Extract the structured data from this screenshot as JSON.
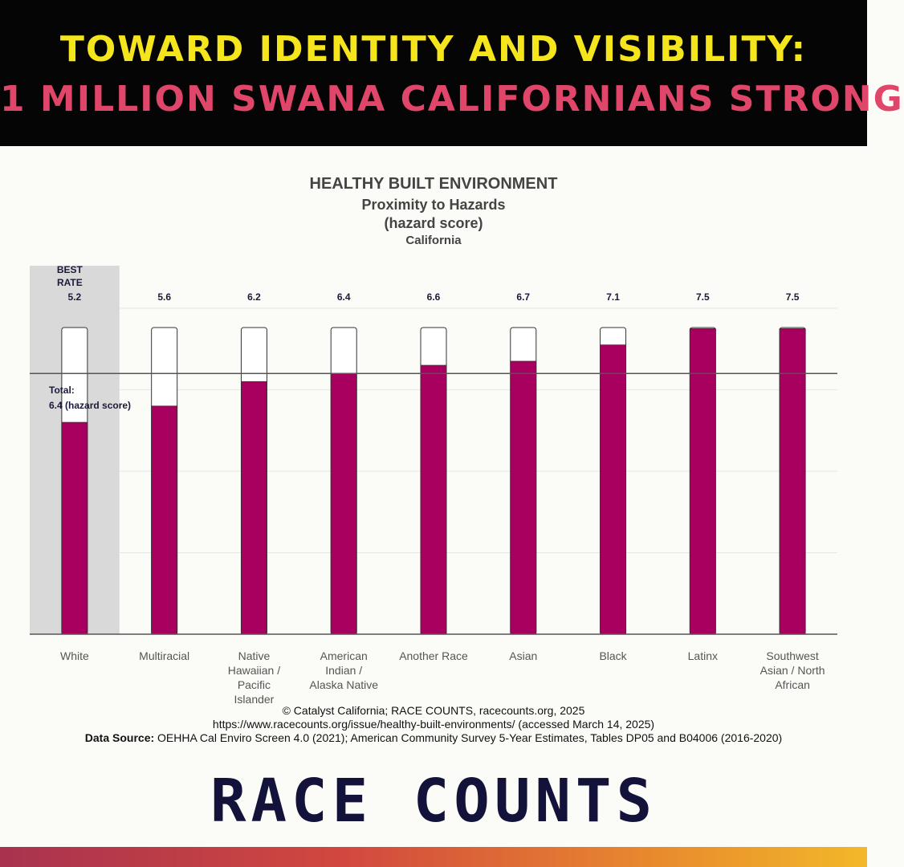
{
  "header": {
    "headline1": "TOWARD IDENTITY AND VISIBILITY:",
    "headline2": "1 MILLION SWANA CALIFORNIANS STRONG"
  },
  "chart_data": {
    "type": "bar",
    "title": "HEALTHY BUILT ENVIRONMENT",
    "subtitle": "Proximity to Hazards",
    "unit_label": "(hazard score)",
    "region": "California",
    "categories": [
      "White",
      "Multiracial",
      "Native Hawaiian / Pacific Islander",
      "American Indian / Alaska Native",
      "Another Race",
      "Asian",
      "Black",
      "Latinx",
      "Southwest Asian / North African"
    ],
    "category_lines": [
      [
        "White"
      ],
      [
        "Multiracial"
      ],
      [
        "Native",
        "Hawaiian /",
        "Pacific",
        "Islander"
      ],
      [
        "American",
        "Indian /",
        "Alaska Native"
      ],
      [
        "Another Race"
      ],
      [
        "Asian"
      ],
      [
        "Black"
      ],
      [
        "Latinx"
      ],
      [
        "Southwest",
        "Asian / North",
        "African"
      ]
    ],
    "values": [
      5.2,
      5.6,
      6.2,
      6.4,
      6.6,
      6.7,
      7.1,
      7.5,
      7.5
    ],
    "value_labels": [
      "5.2",
      "5.6",
      "6.2",
      "6.4",
      "6.6",
      "6.7",
      "7.1",
      "7.5",
      "7.5"
    ],
    "best_label_lines": [
      "BEST",
      "RATE"
    ],
    "highlight_index": 0,
    "max_value": 7.5,
    "total": 6.4,
    "total_label_lines": [
      "Total:",
      "6.4 (hazard score)"
    ],
    "ylim": [
      0,
      8.0
    ],
    "grid": true,
    "bar_color": "#a8005f",
    "highlight_color": "#d9d9d9"
  },
  "footer": {
    "credit": "© Catalyst California; RACE COUNTS, racecounts.org, 2025",
    "url": "https://www.racecounts.org/issue/healthy-built-environments/ (accessed March 14, 2025)",
    "source_label": "Data Source:",
    "source_text": " OEHHA Cal Enviro Screen 4.0 (2021); American Community Survey 5-Year Estimates, Tables DP05 and B04006 (2016-2020)"
  },
  "brand": "RACE COUNTS"
}
